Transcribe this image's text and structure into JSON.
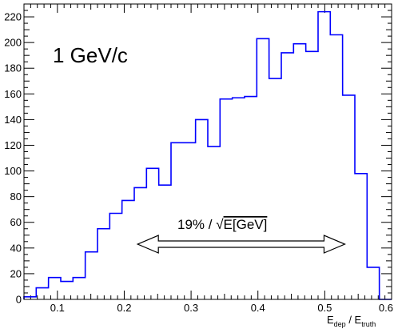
{
  "chart_data": {
    "type": "histogram",
    "title": "",
    "xlabel": {
      "base": "E",
      "sub": "dep",
      "sep": " / E",
      "sub2": "truth"
    },
    "ylabel": "",
    "xlim": [
      0.05,
      0.6
    ],
    "ylim": [
      0,
      230
    ],
    "bin_width": 0.0183,
    "x_ticks": [
      {
        "v": 0.1,
        "label": "0.1"
      },
      {
        "v": 0.2,
        "label": "0.2"
      },
      {
        "v": 0.3,
        "label": "0.3"
      },
      {
        "v": 0.4,
        "label": "0.4"
      },
      {
        "v": 0.5,
        "label": "0.5"
      },
      {
        "v": 0.6,
        "label": "0.6"
      }
    ],
    "y_ticks": [
      {
        "v": 0,
        "label": "0"
      },
      {
        "v": 20,
        "label": "20"
      },
      {
        "v": 40,
        "label": "40"
      },
      {
        "v": 60,
        "label": "60"
      },
      {
        "v": 80,
        "label": "80"
      },
      {
        "v": 100,
        "label": "100"
      },
      {
        "v": 120,
        "label": "120"
      },
      {
        "v": 140,
        "label": "140"
      },
      {
        "v": 160,
        "label": "160"
      },
      {
        "v": 180,
        "label": "180"
      },
      {
        "v": 200,
        "label": "200"
      },
      {
        "v": 220,
        "label": "220"
      }
    ],
    "bins": [
      {
        "x": 0.05,
        "y": 2
      },
      {
        "x": 0.0683,
        "y": 9
      },
      {
        "x": 0.0867,
        "y": 17
      },
      {
        "x": 0.105,
        "y": 14
      },
      {
        "x": 0.1233,
        "y": 17
      },
      {
        "x": 0.1417,
        "y": 37
      },
      {
        "x": 0.16,
        "y": 55
      },
      {
        "x": 0.1783,
        "y": 67
      },
      {
        "x": 0.1967,
        "y": 77
      },
      {
        "x": 0.215,
        "y": 87
      },
      {
        "x": 0.2333,
        "y": 102
      },
      {
        "x": 0.2517,
        "y": 89
      },
      {
        "x": 0.27,
        "y": 122
      },
      {
        "x": 0.2883,
        "y": 122
      },
      {
        "x": 0.3067,
        "y": 140
      },
      {
        "x": 0.325,
        "y": 119
      },
      {
        "x": 0.3433,
        "y": 156
      },
      {
        "x": 0.3617,
        "y": 157
      },
      {
        "x": 0.38,
        "y": 158
      },
      {
        "x": 0.3983,
        "y": 203
      },
      {
        "x": 0.4167,
        "y": 172
      },
      {
        "x": 0.435,
        "y": 192
      },
      {
        "x": 0.4533,
        "y": 199
      },
      {
        "x": 0.4717,
        "y": 193
      },
      {
        "x": 0.49,
        "y": 224
      },
      {
        "x": 0.5083,
        "y": 206
      },
      {
        "x": 0.5267,
        "y": 159
      },
      {
        "x": 0.545,
        "y": 98
      },
      {
        "x": 0.5633,
        "y": 25
      },
      {
        "x": 0.5817,
        "y": 0
      }
    ],
    "line_color": "#0000ff",
    "annotations": {
      "momentum": "1 GeV/c",
      "resolution_prefix": "19% / ",
      "sqrt_symbol": "√",
      "resolution_suffix": "E[GeV]",
      "arrow_range": [
        0.22,
        0.53
      ],
      "arrow_y": 43
    }
  }
}
